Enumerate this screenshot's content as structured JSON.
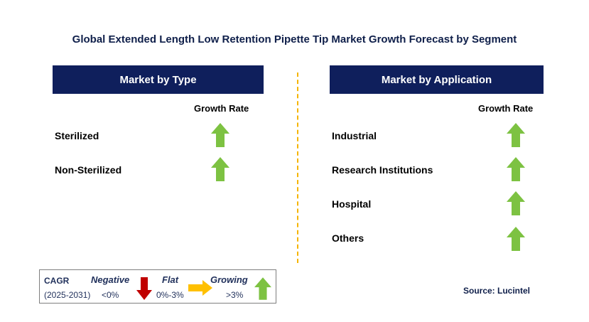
{
  "title": "Global Extended Length Low Retention Pipette Tip Market Growth Forecast by Segment",
  "left_panel": {
    "header": "Market by Type",
    "growth_label": "Growth Rate",
    "items": [
      {
        "label": "Sterilized",
        "trend": "growing"
      },
      {
        "label": "Non-Sterilized",
        "trend": "growing"
      }
    ]
  },
  "right_panel": {
    "header": "Market by Application",
    "growth_label": "Growth Rate",
    "items": [
      {
        "label": "Industrial",
        "trend": "growing"
      },
      {
        "label": "Research Institutions",
        "trend": "growing"
      },
      {
        "label": "Hospital",
        "trend": "growing"
      },
      {
        "label": "Others",
        "trend": "growing"
      }
    ]
  },
  "legend": {
    "cagr_label": "CAGR",
    "period": "(2025-2031)",
    "negative": {
      "label": "Negative",
      "range": "<0%",
      "color": "#c00000"
    },
    "flat": {
      "label": "Flat",
      "range": "0%-3%",
      "color": "#ffc000"
    },
    "growing": {
      "label": "Growing",
      "range": ">3%",
      "color": "#7dc242"
    }
  },
  "source": "Source: Lucintel"
}
